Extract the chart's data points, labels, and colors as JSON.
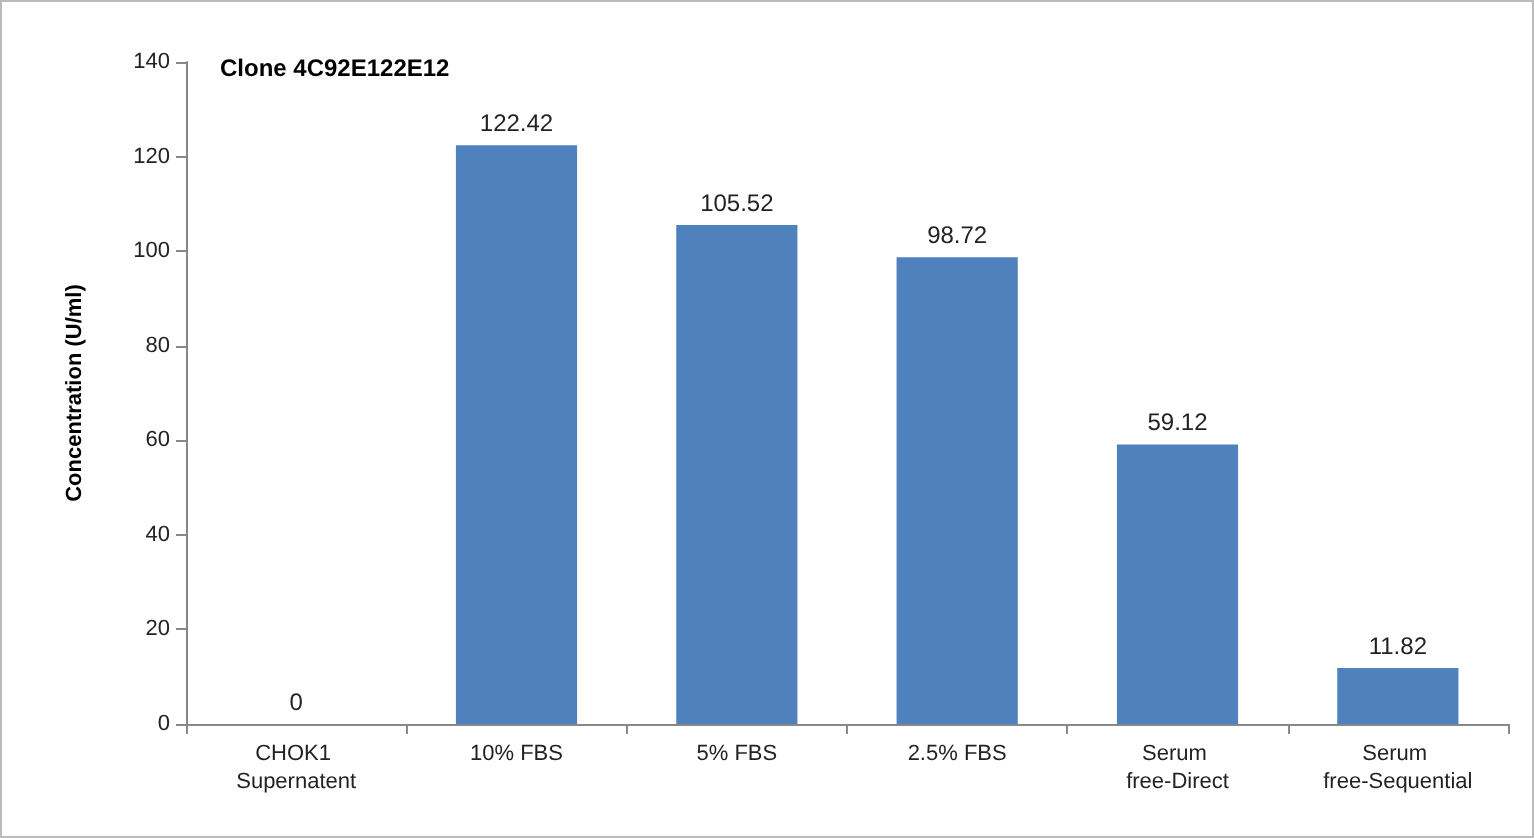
{
  "chart_data": {
    "type": "bar",
    "title": "Clone 4C92E122E12",
    "ylabel": "Concentration (U/ml)",
    "categories": [
      "CHOK1 Supernatent",
      "10% FBS",
      "5% FBS",
      "2.5% FBS",
      "Serum free-Direct",
      "Serum free-Sequential"
    ],
    "values": [
      0,
      122.42,
      105.52,
      98.72,
      59.12,
      11.82
    ],
    "color": "#4f81bd",
    "ylim": [
      0,
      140
    ],
    "yticks": [
      0,
      20,
      40,
      60,
      80,
      100,
      120,
      140
    ],
    "grid": false,
    "data_labels": true
  }
}
